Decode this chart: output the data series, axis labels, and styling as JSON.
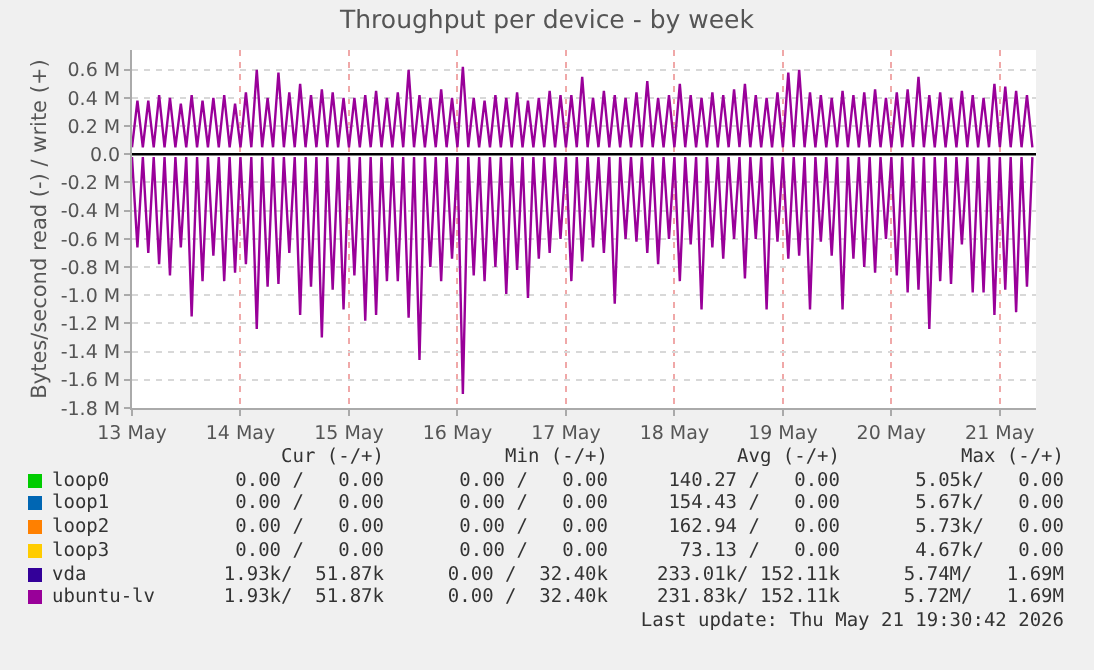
{
  "chart_data": {
    "type": "line",
    "title": "Throughput per device - by week",
    "ylabel": "Bytes/second read (-) / write (+)",
    "xlim": [
      "2026-05-13T00:00",
      "2026-05-21T08:00"
    ],
    "xticks": [
      {
        "value": "2026-05-13",
        "label": "13 May"
      },
      {
        "value": "2026-05-14",
        "label": "14 May"
      },
      {
        "value": "2026-05-15",
        "label": "15 May"
      },
      {
        "value": "2026-05-16",
        "label": "16 May"
      },
      {
        "value": "2026-05-17",
        "label": "17 May"
      },
      {
        "value": "2026-05-18",
        "label": "18 May"
      },
      {
        "value": "2026-05-19",
        "label": "19 May"
      },
      {
        "value": "2026-05-20",
        "label": "20 May"
      },
      {
        "value": "2026-05-21",
        "label": "21 May"
      }
    ],
    "ylim": [
      -1.8,
      0.74
    ],
    "yticks": [
      {
        "value": 0.6,
        "label": "0.6 M"
      },
      {
        "value": 0.4,
        "label": "0.4 M"
      },
      {
        "value": 0.2,
        "label": "0.2 M"
      },
      {
        "value": 0,
        "label": "0.0"
      },
      {
        "value": -0.2,
        "label": "-0.2 M"
      },
      {
        "value": -0.4,
        "label": "-0.4 M"
      },
      {
        "value": -0.6,
        "label": "-0.6 M"
      },
      {
        "value": -0.8,
        "label": "-0.8 M"
      },
      {
        "value": -1.0,
        "label": "-1.0 M"
      },
      {
        "value": -1.2,
        "label": "-1.2 M"
      },
      {
        "value": -1.4,
        "label": "-1.4 M"
      },
      {
        "value": -1.6,
        "label": "-1.6 M"
      },
      {
        "value": -1.8,
        "label": "-1.8 M"
      }
    ],
    "grid": true,
    "legend": "bottom",
    "marker": "none",
    "line_style": "solid",
    "ref_lines": [
      {
        "axis": "y",
        "value": 0,
        "color": "#000000"
      }
    ],
    "x": [
      "2026-05-13T00:00",
      "2026-05-13T01:12",
      "2026-05-13T02:24",
      "2026-05-13T03:36",
      "2026-05-13T04:48",
      "2026-05-13T06:00",
      "2026-05-13T07:12",
      "2026-05-13T08:24",
      "2026-05-13T09:36",
      "2026-05-13T10:48",
      "2026-05-13T12:00",
      "2026-05-13T13:12",
      "2026-05-13T14:24",
      "2026-05-13T15:36",
      "2026-05-13T16:48",
      "2026-05-13T18:00",
      "2026-05-13T19:12",
      "2026-05-13T20:24",
      "2026-05-13T21:36",
      "2026-05-13T22:48",
      "2026-05-14T00:00",
      "2026-05-14T01:12",
      "2026-05-14T02:24",
      "2026-05-14T03:36",
      "2026-05-14T04:48",
      "2026-05-14T06:00",
      "2026-05-14T07:12",
      "2026-05-14T08:24",
      "2026-05-14T09:36",
      "2026-05-14T10:48",
      "2026-05-14T12:00",
      "2026-05-14T13:12",
      "2026-05-14T14:24",
      "2026-05-14T15:36",
      "2026-05-14T16:48",
      "2026-05-14T18:00",
      "2026-05-14T19:12",
      "2026-05-14T20:24",
      "2026-05-14T21:36",
      "2026-05-14T22:48",
      "2026-05-15T00:00",
      "2026-05-15T01:12",
      "2026-05-15T02:24",
      "2026-05-15T03:36",
      "2026-05-15T04:48",
      "2026-05-15T06:00",
      "2026-05-15T07:12",
      "2026-05-15T08:24",
      "2026-05-15T09:36",
      "2026-05-15T10:48",
      "2026-05-15T12:00",
      "2026-05-15T13:12",
      "2026-05-15T14:24",
      "2026-05-15T15:36",
      "2026-05-15T16:48",
      "2026-05-15T18:00",
      "2026-05-15T19:12",
      "2026-05-15T20:24",
      "2026-05-15T21:36",
      "2026-05-15T22:48",
      "2026-05-16T00:00",
      "2026-05-16T01:12",
      "2026-05-16T02:24",
      "2026-05-16T03:36",
      "2026-05-16T04:48",
      "2026-05-16T06:00",
      "2026-05-16T07:12",
      "2026-05-16T08:24",
      "2026-05-16T09:36",
      "2026-05-16T10:48",
      "2026-05-16T12:00",
      "2026-05-16T13:12",
      "2026-05-16T14:24",
      "2026-05-16T15:36",
      "2026-05-16T16:48",
      "2026-05-16T18:00",
      "2026-05-16T19:12",
      "2026-05-16T20:24",
      "2026-05-16T21:36",
      "2026-05-16T22:48",
      "2026-05-17T00:00",
      "2026-05-17T01:12",
      "2026-05-17T02:24",
      "2026-05-17T03:36",
      "2026-05-17T04:48",
      "2026-05-17T06:00",
      "2026-05-17T07:12",
      "2026-05-17T08:24",
      "2026-05-17T09:36",
      "2026-05-17T10:48",
      "2026-05-17T12:00",
      "2026-05-17T13:12",
      "2026-05-17T14:24",
      "2026-05-17T15:36",
      "2026-05-17T16:48",
      "2026-05-17T18:00",
      "2026-05-17T19:12",
      "2026-05-17T20:24",
      "2026-05-17T21:36",
      "2026-05-17T22:48",
      "2026-05-18T00:00",
      "2026-05-18T01:12",
      "2026-05-18T02:24",
      "2026-05-18T03:36",
      "2026-05-18T04:48",
      "2026-05-18T06:00",
      "2026-05-18T07:12",
      "2026-05-18T08:24",
      "2026-05-18T09:36",
      "2026-05-18T10:48",
      "2026-05-18T12:00",
      "2026-05-18T13:12",
      "2026-05-18T14:24",
      "2026-05-18T15:36",
      "2026-05-18T16:48",
      "2026-05-18T18:00",
      "2026-05-18T19:12",
      "2026-05-18T20:24",
      "2026-05-18T21:36",
      "2026-05-18T22:48",
      "2026-05-19T00:00",
      "2026-05-19T01:12",
      "2026-05-19T02:24",
      "2026-05-19T03:36",
      "2026-05-19T04:48",
      "2026-05-19T06:00",
      "2026-05-19T07:12",
      "2026-05-19T08:24",
      "2026-05-19T09:36",
      "2026-05-19T10:48",
      "2026-05-19T12:00",
      "2026-05-19T13:12",
      "2026-05-19T14:24",
      "2026-05-19T15:36",
      "2026-05-19T16:48",
      "2026-05-19T18:00",
      "2026-05-19T19:12",
      "2026-05-19T20:24",
      "2026-05-19T21:36",
      "2026-05-19T22:48",
      "2026-05-20T00:00",
      "2026-05-20T01:12",
      "2026-05-20T02:24",
      "2026-05-20T03:36",
      "2026-05-20T04:48",
      "2026-05-20T06:00",
      "2026-05-20T07:12",
      "2026-05-20T08:24",
      "2026-05-20T09:36",
      "2026-05-20T10:48",
      "2026-05-20T12:00",
      "2026-05-20T13:12",
      "2026-05-20T14:24",
      "2026-05-20T15:36",
      "2026-05-20T16:48",
      "2026-05-20T18:00",
      "2026-05-20T19:12",
      "2026-05-20T20:24",
      "2026-05-20T21:36",
      "2026-05-20T22:48",
      "2026-05-21T00:00",
      "2026-05-21T01:12",
      "2026-05-21T02:24",
      "2026-05-21T03:36",
      "2026-05-21T04:48",
      "2026-05-21T06:00",
      "2026-05-21T07:12"
    ],
    "series": [
      {
        "name": "loop0",
        "color": "#00cc00",
        "values": [
          null,
          null,
          null,
          null,
          null,
          null,
          null,
          null,
          null,
          null,
          null,
          null,
          null,
          null,
          null,
          null,
          null,
          null,
          null,
          null,
          null,
          null,
          null,
          null,
          null,
          null,
          null,
          null,
          null,
          null,
          null,
          null,
          null,
          null,
          null,
          null,
          null,
          null,
          null,
          null,
          null,
          null,
          null,
          null,
          null,
          null,
          null,
          null,
          null,
          null,
          null,
          null,
          null,
          null,
          null,
          null,
          null,
          null,
          null,
          null,
          null,
          null,
          null,
          null,
          null,
          null,
          null,
          null,
          null,
          null,
          null,
          null,
          null,
          null,
          null,
          null,
          null,
          null,
          null,
          null,
          null,
          null,
          null,
          null,
          null,
          null,
          null,
          null,
          null,
          null,
          null,
          null,
          null,
          null,
          null,
          null,
          null,
          null,
          null,
          null,
          null,
          null,
          null,
          null,
          null,
          null,
          null,
          null,
          null,
          null,
          null,
          null,
          null,
          null,
          null,
          null,
          null,
          null,
          null,
          null,
          null,
          null,
          null,
          null,
          null,
          null,
          null,
          null,
          null,
          null,
          null,
          null,
          null,
          null,
          null,
          null,
          null,
          null,
          null,
          null,
          null,
          null,
          null,
          null,
          null,
          null,
          null,
          null,
          null,
          null,
          null,
          null,
          null,
          null,
          null,
          null,
          null,
          null,
          null,
          null,
          null,
          null,
          null,
          null,
          null,
          null,
          null
        ]
      },
      {
        "name": "loop1",
        "color": "#0066b3",
        "values": [
          null,
          null,
          null,
          null,
          null,
          null,
          null,
          null,
          null,
          null,
          null,
          null,
          null,
          null,
          null,
          null,
          null,
          null,
          null,
          null,
          null,
          null,
          null,
          null,
          null,
          null,
          null,
          null,
          null,
          null,
          null,
          null,
          null,
          null,
          null,
          null,
          null,
          null,
          null,
          null,
          null,
          null,
          null,
          null,
          null,
          null,
          null,
          null,
          null,
          null,
          null,
          null,
          null,
          null,
          null,
          null,
          null,
          null,
          null,
          null,
          null,
          null,
          null,
          null,
          null,
          null,
          null,
          null,
          null,
          null,
          null,
          null,
          null,
          null,
          null,
          null,
          null,
          null,
          null,
          null,
          null,
          null,
          null,
          null,
          null,
          null,
          null,
          null,
          null,
          null,
          null,
          null,
          null,
          null,
          null,
          null,
          null,
          null,
          null,
          null,
          null,
          null,
          null,
          null,
          null,
          null,
          null,
          null,
          null,
          null,
          null,
          null,
          null,
          null,
          null,
          null,
          null,
          null,
          null,
          null,
          null,
          null,
          null,
          null,
          null,
          null,
          null,
          null,
          null,
          null,
          null,
          null,
          null,
          null,
          null,
          null,
          null,
          null,
          null,
          null,
          null,
          null,
          null,
          null,
          null,
          null,
          null,
          null,
          null,
          null,
          null,
          null,
          null,
          null,
          null,
          null,
          null,
          null,
          null,
          null,
          null,
          null,
          null,
          null,
          null,
          null,
          null
        ]
      },
      {
        "name": "loop2",
        "color": "#ff8000",
        "values": [
          null,
          null,
          null,
          null,
          null,
          null,
          null,
          null,
          null,
          null,
          null,
          null,
          null,
          null,
          null,
          null,
          null,
          null,
          null,
          null,
          null,
          null,
          null,
          null,
          null,
          null,
          null,
          null,
          null,
          null,
          null,
          null,
          null,
          null,
          null,
          null,
          null,
          null,
          null,
          null,
          null,
          null,
          null,
          null,
          null,
          null,
          null,
          null,
          null,
          null,
          null,
          null,
          null,
          null,
          null,
          null,
          null,
          null,
          null,
          null,
          null,
          null,
          null,
          null,
          null,
          null,
          null,
          null,
          null,
          null,
          null,
          null,
          null,
          null,
          null,
          null,
          null,
          null,
          null,
          null,
          null,
          null,
          null,
          null,
          null,
          null,
          null,
          null,
          null,
          null,
          null,
          null,
          null,
          null,
          null,
          null,
          null,
          null,
          null,
          null,
          null,
          null,
          null,
          null,
          null,
          null,
          null,
          null,
          null,
          null,
          null,
          null,
          null,
          null,
          null,
          null,
          null,
          null,
          null,
          null,
          null,
          null,
          null,
          null,
          null,
          null,
          null,
          null,
          null,
          null,
          null,
          null,
          null,
          null,
          null,
          null,
          null,
          null,
          null,
          null,
          null,
          null,
          null,
          null,
          null,
          null,
          null,
          null,
          null,
          null,
          null,
          null,
          null,
          null,
          null,
          null,
          null,
          null,
          null,
          null,
          null,
          null,
          null,
          null,
          null,
          null,
          null
        ]
      },
      {
        "name": "loop3",
        "color": "#ffcc00",
        "values": [
          null,
          null,
          null,
          null,
          null,
          null,
          null,
          null,
          null,
          null,
          null,
          null,
          null,
          null,
          null,
          null,
          null,
          null,
          null,
          null,
          null,
          null,
          null,
          null,
          null,
          null,
          null,
          null,
          null,
          null,
          null,
          null,
          null,
          null,
          null,
          null,
          null,
          null,
          null,
          null,
          null,
          null,
          null,
          null,
          null,
          null,
          null,
          null,
          null,
          null,
          null,
          null,
          null,
          null,
          null,
          null,
          null,
          null,
          null,
          null,
          null,
          null,
          null,
          null,
          null,
          null,
          null,
          null,
          null,
          null,
          null,
          null,
          null,
          null,
          null,
          null,
          null,
          null,
          null,
          null,
          null,
          null,
          null,
          null,
          null,
          null,
          null,
          null,
          null,
          null,
          null,
          null,
          null,
          null,
          null,
          null,
          null,
          null,
          null,
          null,
          null,
          null,
          null,
          null,
          null,
          null,
          null,
          null,
          null,
          null,
          null,
          null,
          null,
          null,
          null,
          null,
          null,
          null,
          null,
          null,
          null,
          null,
          null,
          null,
          null,
          null,
          null,
          null,
          null,
          null,
          null,
          null,
          null,
          null,
          null,
          null,
          null,
          null,
          null,
          null,
          null,
          null,
          null,
          null,
          null,
          null,
          null,
          null,
          null,
          null,
          null,
          null,
          null,
          null,
          null,
          null,
          null,
          null,
          null,
          null,
          null,
          null,
          null,
          null,
          null,
          null,
          null
        ]
      },
      {
        "name": "vda",
        "color": "#330099",
        "values": [
          null,
          null,
          null,
          null,
          null,
          null,
          null,
          null,
          null,
          null,
          null,
          null,
          null,
          null,
          null,
          null,
          null,
          null,
          null,
          null,
          null,
          null,
          null,
          null,
          null,
          null,
          null,
          null,
          null,
          null,
          null,
          null,
          null,
          null,
          null,
          null,
          null,
          null,
          null,
          null,
          null,
          null,
          null,
          null,
          null,
          null,
          null,
          null,
          null,
          null,
          null,
          null,
          null,
          null,
          null,
          null,
          null,
          null,
          null,
          null,
          null,
          null,
          null,
          null,
          null,
          null,
          null,
          null,
          null,
          null,
          null,
          null,
          null,
          null,
          null,
          null,
          null,
          null,
          null,
          null,
          null,
          null,
          null,
          null,
          null,
          null,
          null,
          null,
          null,
          null,
          null,
          null,
          null,
          null,
          null,
          null,
          null,
          null,
          null,
          null,
          null,
          null,
          null,
          null,
          null,
          null,
          null,
          null,
          null,
          null,
          null,
          null,
          null,
          null,
          null,
          null,
          null,
          null,
          null,
          null,
          null,
          null,
          null,
          null,
          null,
          null,
          null,
          null,
          null,
          null,
          null,
          null,
          null,
          null,
          null,
          null,
          null,
          null,
          null,
          null,
          null,
          null,
          null,
          null,
          null,
          null,
          null,
          null,
          null,
          null,
          null,
          null,
          null,
          null,
          null,
          null,
          null,
          null,
          null,
          null,
          null,
          null,
          null,
          null,
          null,
          null,
          null
        ]
      },
      {
        "name": "ubuntu-lv",
        "color": "#990099",
        "values": [
          0.05,
          0.38,
          0.05,
          0.38,
          0.05,
          0.42,
          0.05,
          0.4,
          0.05,
          0.36,
          0.05,
          0.42,
          0.05,
          0.38,
          0.05,
          0.4,
          0.05,
          0.42,
          0.05,
          0.36,
          0.05,
          0.44,
          0.05,
          0.6,
          0.05,
          0.4,
          0.05,
          0.58,
          0.05,
          0.44,
          0.05,
          0.5,
          0.05,
          0.42,
          0.05,
          0.46,
          0.05,
          0.44,
          0.05,
          0.4,
          0.05,
          0.4,
          0.05,
          0.42,
          0.05,
          0.45,
          0.05,
          0.4,
          0.05,
          0.44,
          0.05,
          0.6,
          0.05,
          0.42,
          0.05,
          0.4,
          0.05,
          0.46,
          0.05,
          0.4,
          0.05,
          0.62,
          0.05,
          0.4,
          0.05,
          0.38,
          0.05,
          0.42,
          0.05,
          0.4,
          0.05,
          0.44,
          0.05,
          0.38,
          0.05,
          0.4,
          0.05,
          0.45,
          0.05,
          0.42,
          0.05,
          0.42,
          0.05,
          0.55,
          0.05,
          0.4,
          0.05,
          0.45,
          0.05,
          0.42,
          0.05,
          0.4,
          0.05,
          0.44,
          0.05,
          0.52,
          0.05,
          0.4,
          0.05,
          0.42,
          0.05,
          0.5,
          0.05,
          0.42,
          0.05,
          0.4,
          0.05,
          0.44,
          0.05,
          0.42,
          0.05,
          0.46,
          0.05,
          0.5,
          0.05,
          0.42,
          0.05,
          0.4,
          0.05,
          0.44,
          0.05,
          0.58,
          0.05,
          0.6,
          0.05,
          0.44,
          0.05,
          0.42,
          0.05,
          0.4,
          0.05,
          0.45,
          0.05,
          0.42,
          0.05,
          0.44,
          0.05,
          0.46,
          0.05,
          0.4,
          0.05,
          0.44,
          0.05,
          0.46,
          0.05,
          0.55,
          0.05,
          0.42,
          0.05,
          0.44,
          0.05,
          0.4,
          0.05,
          0.45,
          0.05,
          0.42,
          0.05,
          0.4,
          0.05,
          0.5,
          0.05,
          0.48,
          0.05,
          0.45,
          0.05,
          0.42,
          0.05
        ]
      },
      {
        "color": "#990099",
        "values": [
          -0.02,
          -0.66,
          -0.02,
          -0.7,
          -0.02,
          -0.78,
          -0.02,
          -0.86,
          -0.02,
          -0.66,
          -0.02,
          -1.15,
          -0.02,
          -0.9,
          -0.02,
          -0.72,
          -0.02,
          -0.9,
          -0.02,
          -0.84,
          -0.02,
          -0.78,
          -0.02,
          -1.24,
          -0.02,
          -0.94,
          -0.02,
          -0.92,
          -0.02,
          -0.7,
          -0.02,
          -1.14,
          -0.02,
          -0.94,
          -0.02,
          -1.3,
          -0.02,
          -0.96,
          -0.02,
          -1.1,
          -0.02,
          -0.86,
          -0.02,
          -1.18,
          -0.02,
          -1.14,
          -0.02,
          -0.9,
          -0.02,
          -0.9,
          -0.02,
          -1.16,
          -0.02,
          -1.46,
          -0.02,
          -0.8,
          -0.02,
          -0.9,
          -0.02,
          -0.74,
          -0.02,
          -1.7,
          -0.02,
          -0.86,
          -0.02,
          -0.9,
          -0.02,
          -0.8,
          -0.02,
          -0.99,
          -0.02,
          -0.82,
          -0.02,
          -1.02,
          -0.02,
          -0.74,
          -0.02,
          -0.7,
          -0.02,
          -0.6,
          -0.02,
          -0.9,
          -0.02,
          -0.76,
          -0.02,
          -0.66,
          -0.02,
          -0.7,
          -0.02,
          -1.06,
          -0.02,
          -0.6,
          -0.02,
          -0.62,
          -0.02,
          -0.7,
          -0.02,
          -0.78,
          -0.02,
          -0.6,
          -0.02,
          -0.9,
          -0.02,
          -0.64,
          -0.02,
          -1.1,
          -0.02,
          -0.66,
          -0.02,
          -0.74,
          -0.02,
          -0.6,
          -0.02,
          -0.88,
          -0.02,
          -0.6,
          -0.02,
          -1.1,
          -0.02,
          -0.62,
          -0.02,
          -0.74,
          -0.02,
          -0.72,
          -0.02,
          -1.1,
          -0.02,
          -0.62,
          -0.02,
          -0.72,
          -0.02,
          -1.1,
          -0.02,
          -0.74,
          -0.02,
          -0.8,
          -0.02,
          -0.84,
          -0.02,
          -0.6,
          -0.02,
          -0.86,
          -0.02,
          -0.98,
          -0.02,
          -0.96,
          -0.02,
          -1.24,
          -0.02,
          -0.9,
          -0.02,
          -0.92,
          -0.02,
          -0.64,
          -0.02,
          -0.98,
          -0.02,
          -0.98,
          -0.02,
          -1.14,
          -0.02,
          -0.96,
          -0.02,
          -1.12,
          -0.02,
          -0.94,
          -0.02
        ]
      }
    ],
    "annotations": [
      "Cur (-/+)",
      "Min (-/+)",
      "Avg (-/+)",
      "Max (-/+)",
      "0.00 /   0.00",
      "0.00 /   0.00",
      "140.27 /   0.00",
      "5.05k/   0.00",
      "0.00 /   0.00",
      "0.00 /   0.00",
      "154.43 /   0.00",
      "5.67k/   0.00",
      "0.00 /   0.00",
      "0.00 /   0.00",
      "162.94 /   0.00",
      "5.73k/   0.00",
      "0.00 /   0.00",
      "0.00 /   0.00",
      "73.13 /   0.00",
      "4.67k/   0.00",
      "1.93k/  51.87k",
      "0.00 /  32.40k",
      "233.01k/ 152.11k",
      "5.74M/   1.69M",
      "1.93k/  51.87k",
      "0.00 /  32.40k",
      "231.83k/ 152.11k",
      "5.72M/   1.69M",
      "Last update: Thu May 21 19:30:42 2026"
    ]
  }
}
